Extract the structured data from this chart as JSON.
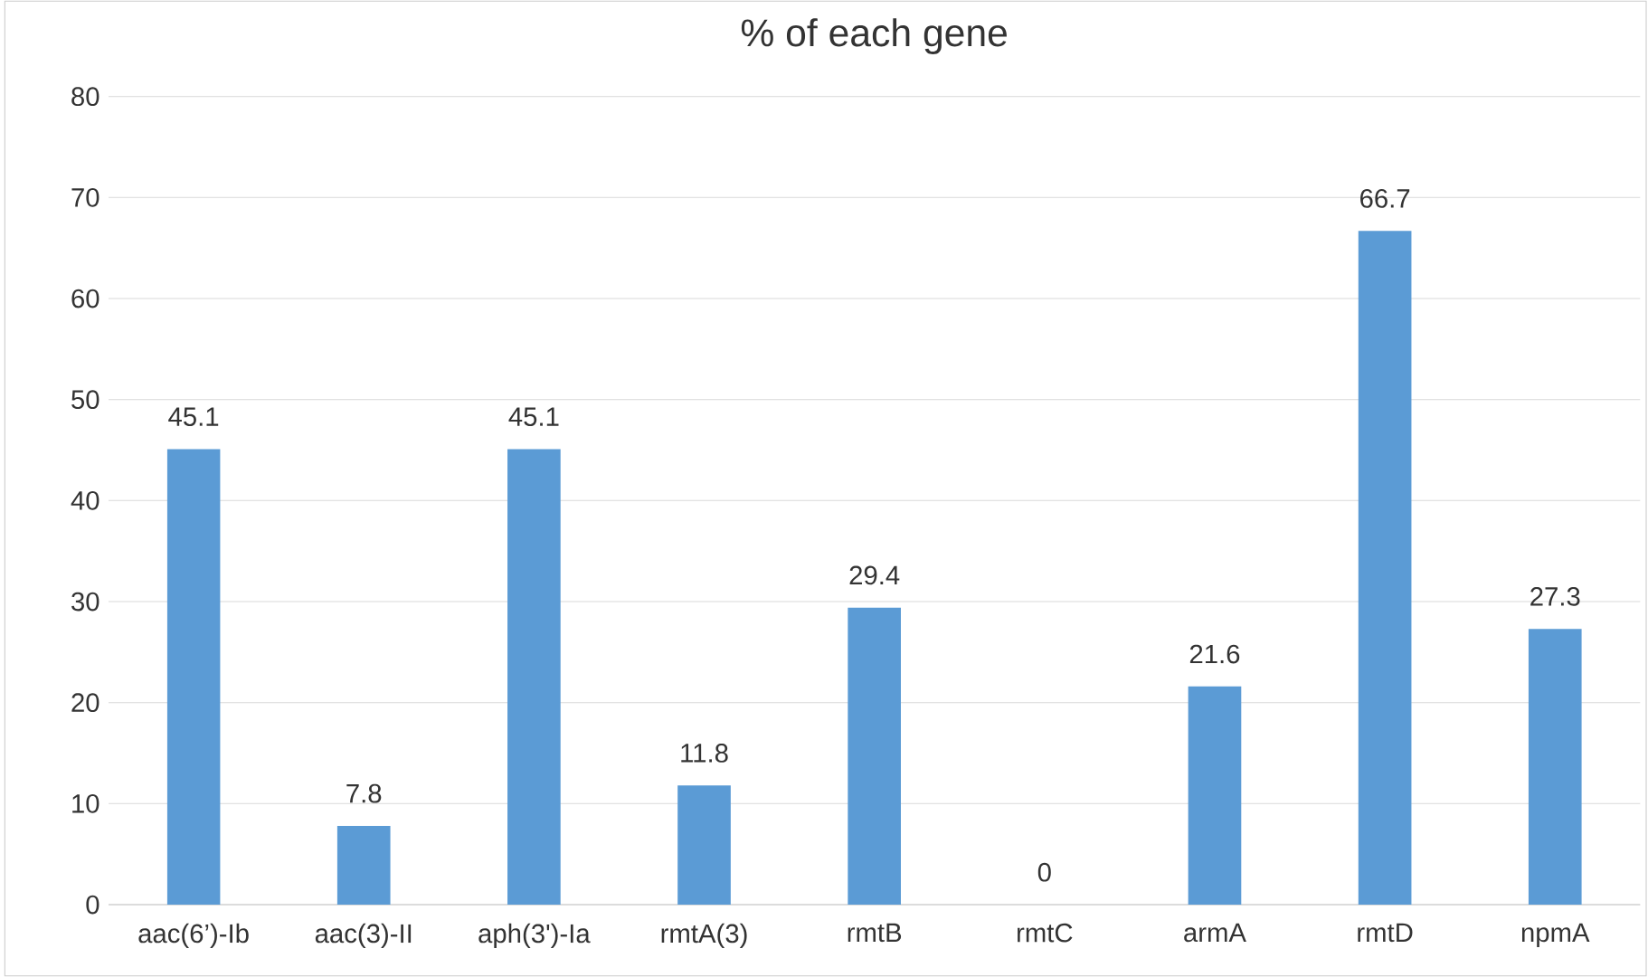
{
  "chart_data": {
    "type": "bar",
    "title": "% of each gene",
    "categories": [
      "aac(6’)-Ib",
      "aac(3)-II",
      "aph(3')-Ia",
      "rmtA(3)",
      "rmtB",
      "rmtC",
      "armA",
      "rmtD",
      "npmA"
    ],
    "values": [
      45.1,
      7.8,
      45.1,
      11.8,
      29.4,
      0,
      21.6,
      66.7,
      27.3
    ],
    "color": "#5b9bd5",
    "ylim": [
      0,
      80
    ],
    "yticks": [
      0,
      10,
      20,
      30,
      40,
      50,
      60,
      70,
      80
    ],
    "grid": "y",
    "data_labels": true
  }
}
